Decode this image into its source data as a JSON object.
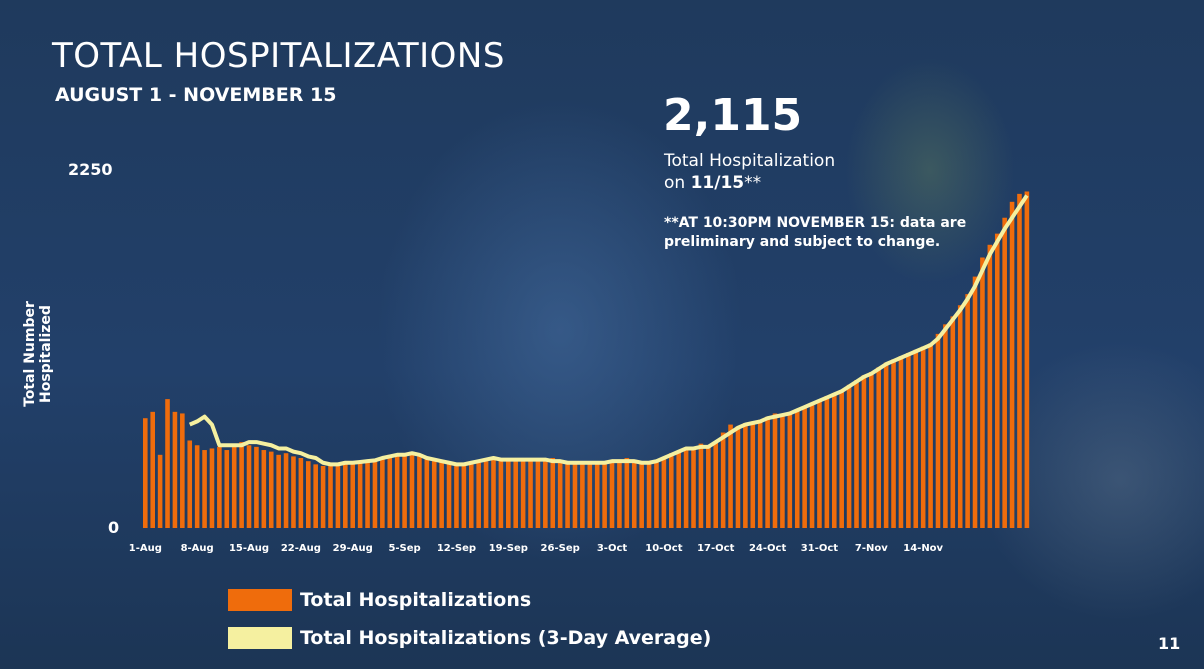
{
  "title": "TOTAL HOSPITALIZATIONS",
  "subtitle": "AUGUST 1 - NOVEMBER 15",
  "callout": {
    "value": "2,115",
    "label_line1": "Total Hospitalization",
    "label_line2_prefix": "on ",
    "label_line2_date": "11/15",
    "label_line2_suffix": "**",
    "note": "**AT 10:30PM NOVEMBER 15: data are preliminary and subject to change."
  },
  "page_number": "11",
  "colors": {
    "bars": "#ef6c0c",
    "avg_line": "#f5f0a0"
  },
  "chart_data": {
    "type": "bar",
    "ylabel_line1": "Total Number",
    "ylabel_line2": "Hospitalized",
    "ylim": [
      0,
      2250
    ],
    "yticks": [
      "2250",
      "0"
    ],
    "x_tick_labels": [
      "1-Aug",
      "8-Aug",
      "15-Aug",
      "22-Aug",
      "29-Aug",
      "5-Sep",
      "12-Sep",
      "19-Sep",
      "26-Sep",
      "3-Oct",
      "10-Oct",
      "17-Oct",
      "24-Oct",
      "31-Oct",
      "7-Nov",
      "14-Nov"
    ],
    "series": [
      {
        "name": "Total Hospitalizations",
        "values": [
          690,
          730,
          460,
          810,
          730,
          720,
          550,
          520,
          490,
          500,
          510,
          490,
          510,
          540,
          520,
          510,
          490,
          480,
          460,
          470,
          450,
          440,
          420,
          400,
          390,
          400,
          410,
          420,
          410,
          420,
          420,
          430,
          440,
          460,
          450,
          470,
          480,
          450,
          440,
          430,
          420,
          410,
          400,
          390,
          400,
          410,
          420,
          430,
          440,
          420,
          430,
          440,
          430,
          420,
          430,
          440,
          420,
          410,
          400,
          410,
          420,
          400,
          410,
          420,
          430,
          440,
          420,
          410,
          400,
          420,
          440,
          470,
          480,
          500,
          510,
          530,
          520,
          540,
          600,
          650,
          640,
          660,
          670,
          680,
          700,
          720,
          710,
          720,
          740,
          760,
          780,
          800,
          830,
          840,
          860,
          900,
          930,
          960,
          980,
          1010,
          1040,
          1060,
          1080,
          1100,
          1120,
          1140,
          1160,
          1220,
          1280,
          1330,
          1400,
          1470,
          1580,
          1700,
          1780,
          1850,
          1950,
          2050,
          2100,
          2115
        ],
        "grid": false
      },
      {
        "name": "Total Hospitalizations (3-Day Average)",
        "values": [
          null,
          null,
          null,
          null,
          null,
          null,
          650,
          670,
          700,
          650,
          520,
          520,
          520,
          520,
          540,
          540,
          530,
          520,
          500,
          500,
          480,
          470,
          450,
          440,
          410,
          400,
          400,
          410,
          410,
          415,
          420,
          425,
          440,
          450,
          460,
          460,
          470,
          460,
          440,
          430,
          420,
          410,
          400,
          400,
          410,
          420,
          430,
          440,
          430,
          430,
          430,
          430,
          430,
          430,
          430,
          420,
          420,
          410,
          410,
          410,
          410,
          410,
          410,
          420,
          420,
          420,
          420,
          410,
          410,
          420,
          440,
          460,
          480,
          500,
          500,
          510,
          510,
          540,
          570,
          600,
          630,
          650,
          660,
          670,
          690,
          700,
          710,
          720,
          740,
          760,
          780,
          800,
          820,
          840,
          860,
          890,
          920,
          950,
          970,
          1000,
          1030,
          1050,
          1070,
          1090,
          1110,
          1130,
          1150,
          1190,
          1250,
          1310,
          1370,
          1440,
          1520,
          1620,
          1720,
          1800,
          1880,
          1950,
          2020,
          2090
        ]
      }
    ]
  }
}
